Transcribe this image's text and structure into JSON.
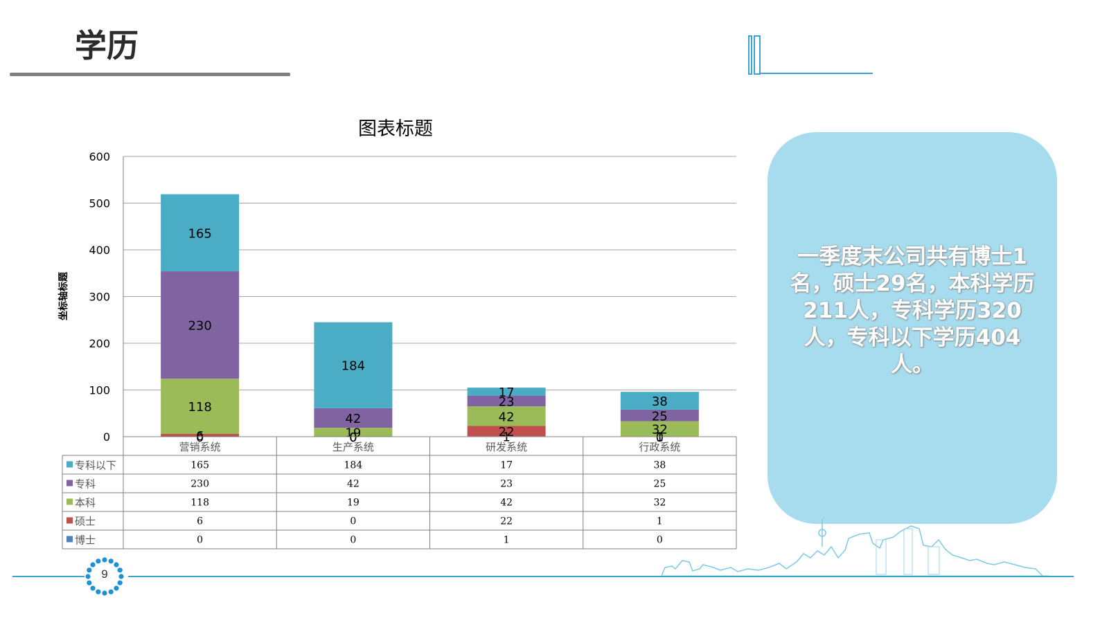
{
  "slide": {
    "title": "学历",
    "page_number": "9"
  },
  "info_box": {
    "text": "一季度末公司共有博士1名，硕士29名，本科学历211人，专科学历320人，专科以下学历404人。"
  },
  "colors": {
    "专科以下": "#4bacc6",
    "专科": "#8064a2",
    "本科": "#9bbb59",
    "硕士": "#c0504d",
    "博士": "#4f81bd",
    "accent": "#3aa3d6",
    "info_box_bg": "#a6dced"
  },
  "chart_data": {
    "type": "bar",
    "stacked": true,
    "title": "图表标题",
    "ylabel": "坐标轴标题",
    "xlabel": "",
    "ylim": [
      0,
      600
    ],
    "yticks": [
      0,
      100,
      200,
      300,
      400,
      500,
      600
    ],
    "grid": true,
    "categories": [
      "营销系统",
      "生产系统",
      "研发系统",
      "行政系统"
    ],
    "series": [
      {
        "name": "博士",
        "values": [
          0,
          0,
          1,
          0
        ]
      },
      {
        "name": "硕士",
        "values": [
          6,
          0,
          22,
          1
        ]
      },
      {
        "name": "本科",
        "values": [
          118,
          19,
          42,
          32
        ]
      },
      {
        "name": "专科",
        "values": [
          230,
          42,
          23,
          25
        ]
      },
      {
        "name": "专科以下",
        "values": [
          165,
          184,
          17,
          38
        ]
      }
    ],
    "data_table_order": [
      "专科以下",
      "专科",
      "本科",
      "硕士",
      "博士"
    ],
    "legend": "data-table"
  }
}
